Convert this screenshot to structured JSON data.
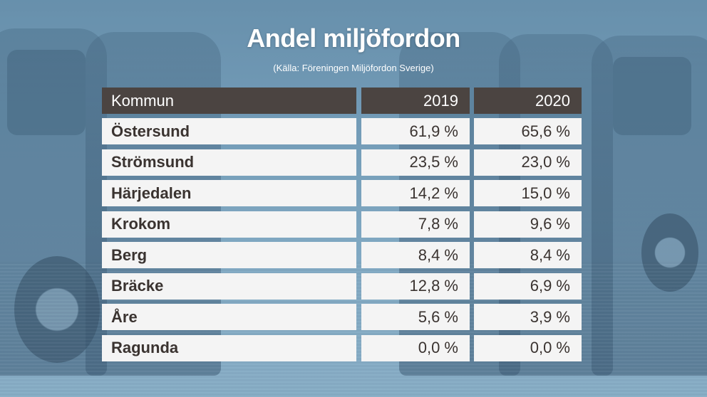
{
  "title": "Andel miljöfordon",
  "source": "(Källa: Föreningen Miljöfordon Sverige)",
  "chart_data": {
    "type": "table",
    "columns": [
      "Kommun",
      "2019",
      "2020"
    ],
    "rows": [
      {
        "kommun": "Östersund",
        "y2019": "61,9 %",
        "y2020": "65,6 %"
      },
      {
        "kommun": "Strömsund",
        "y2019": "23,5 %",
        "y2020": "23,0 %"
      },
      {
        "kommun": "Härjedalen",
        "y2019": "14,2 %",
        "y2020": "15,0 %"
      },
      {
        "kommun": "Krokom",
        "y2019": "7,8 %",
        "y2020": "9,6 %"
      },
      {
        "kommun": "Berg",
        "y2019": "8,4 %",
        "y2020": "8,4 %"
      },
      {
        "kommun": "Bräcke",
        "y2019": "12,8 %",
        "y2020": "6,9 %"
      },
      {
        "kommun": "Åre",
        "y2019": "5,6 %",
        "y2020": "3,9 %"
      },
      {
        "kommun": "Ragunda",
        "y2019": "0,0 %",
        "y2020": "0,0 %"
      }
    ]
  },
  "colors": {
    "header_bg": "#4b4441",
    "row_bg": "#f4f4f4",
    "text": "#3a3330"
  }
}
